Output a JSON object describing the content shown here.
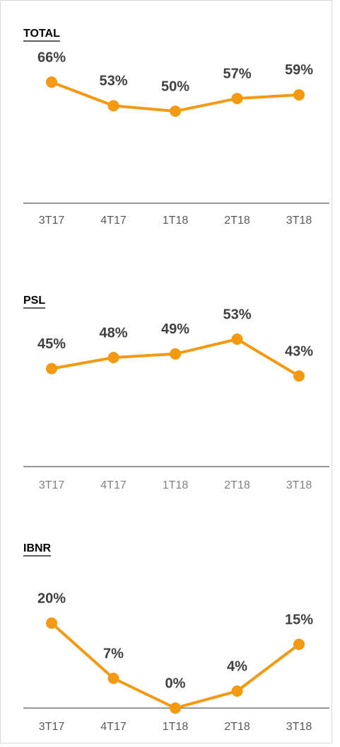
{
  "chart_data": [
    {
      "type": "line",
      "title": "TOTAL",
      "categories": [
        "3T17",
        "4T17",
        "1T18",
        "2T18",
        "3T18"
      ],
      "series": [
        {
          "color": "#f39a12",
          "values": [
            66,
            53,
            50,
            57,
            59
          ],
          "value_labels": [
            "66%",
            "53%",
            "50%",
            "57%",
            "59%"
          ]
        }
      ]
    },
    {
      "type": "line",
      "title": "PSL",
      "categories": [
        "3T17",
        "4T17",
        "1T18",
        "2T18",
        "3T18"
      ],
      "series": [
        {
          "color": "#f39a12",
          "values": [
            45,
            48,
            49,
            53,
            43
          ],
          "value_labels": [
            "45%",
            "48%",
            "49%",
            "53%",
            "43%"
          ]
        }
      ]
    },
    {
      "type": "line",
      "title": "IBNR",
      "categories": [
        "3T17",
        "4T17",
        "1T18",
        "2T18",
        "3T18"
      ],
      "series": [
        {
          "color": "#f39a12",
          "values": [
            20,
            7,
            0,
            4,
            15
          ],
          "value_labels": [
            "20%",
            "7%",
            "0%",
            "4%",
            "15%"
          ]
        }
      ]
    }
  ]
}
